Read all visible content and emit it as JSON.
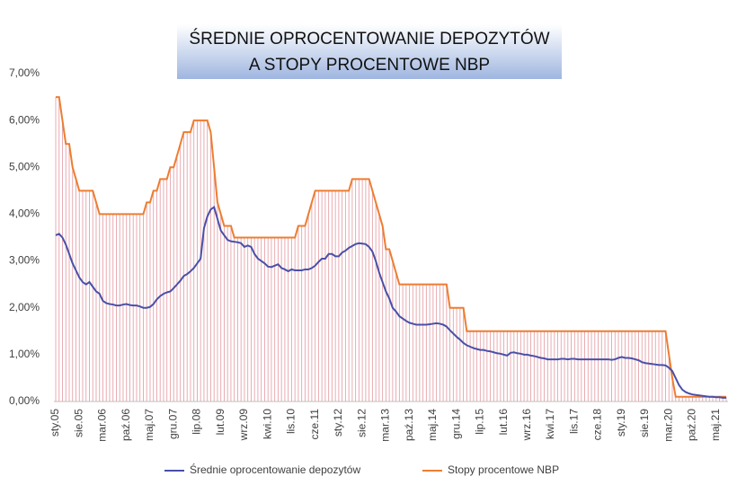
{
  "chart_data": {
    "type": "line",
    "title": [
      "ŚREDNIE OPROCENTOWANIE DEPOZYTÓW",
      "A STOPY PROCENTOWE NBP"
    ],
    "categories": [
      "sty.05",
      null,
      null,
      null,
      null,
      null,
      null,
      "sie.05",
      null,
      null,
      null,
      null,
      null,
      null,
      "mar.06",
      null,
      null,
      null,
      null,
      null,
      null,
      "paź.06",
      null,
      null,
      null,
      null,
      null,
      null,
      "maj.07",
      null,
      null,
      null,
      null,
      null,
      null,
      "gru.07",
      null,
      null,
      null,
      null,
      null,
      null,
      "lip.08",
      null,
      null,
      null,
      null,
      null,
      null,
      "lut.09",
      null,
      null,
      null,
      null,
      null,
      null,
      "wrz.09",
      null,
      null,
      null,
      null,
      null,
      null,
      "kwi.10",
      null,
      null,
      null,
      null,
      null,
      null,
      "lis.10",
      null,
      null,
      null,
      null,
      null,
      null,
      "cze.11",
      null,
      null,
      null,
      null,
      null,
      null,
      "sty.12",
      null,
      null,
      null,
      null,
      null,
      null,
      "sie.12",
      null,
      null,
      null,
      null,
      null,
      null,
      "mar.13",
      null,
      null,
      null,
      null,
      null,
      null,
      "paź.13",
      null,
      null,
      null,
      null,
      null,
      null,
      "maj.14",
      null,
      null,
      null,
      null,
      null,
      null,
      "gru.14",
      null,
      null,
      null,
      null,
      null,
      null,
      "lip.15",
      null,
      null,
      null,
      null,
      null,
      null,
      "lut.16",
      null,
      null,
      null,
      null,
      null,
      null,
      "wrz.16",
      null,
      null,
      null,
      null,
      null,
      null,
      "kwi.17",
      null,
      null,
      null,
      null,
      null,
      null,
      "lis.17",
      null,
      null,
      null,
      null,
      null,
      null,
      "cze.18",
      null,
      null,
      null,
      null,
      null,
      null,
      "sty.19",
      null,
      null,
      null,
      null,
      null,
      null,
      "sie.19",
      null,
      null,
      null,
      null,
      null,
      null,
      "mar.20",
      null,
      null,
      null,
      null,
      null,
      null,
      "paź.20",
      null,
      null,
      null,
      null,
      null,
      null,
      "maj.21",
      null,
      null,
      null
    ],
    "series": [
      {
        "name": "Średnie oprocentowanie depozytów",
        "color": "#4a4fa8",
        "values": [
          3.55,
          3.58,
          3.5,
          3.35,
          3.15,
          2.95,
          2.8,
          2.65,
          2.55,
          2.5,
          2.55,
          2.45,
          2.35,
          2.3,
          2.15,
          2.1,
          2.08,
          2.07,
          2.05,
          2.05,
          2.07,
          2.08,
          2.06,
          2.05,
          2.05,
          2.03,
          2.0,
          2.0,
          2.02,
          2.08,
          2.18,
          2.25,
          2.3,
          2.33,
          2.35,
          2.42,
          2.5,
          2.58,
          2.68,
          2.72,
          2.78,
          2.85,
          2.95,
          3.05,
          3.7,
          3.95,
          4.1,
          4.15,
          3.9,
          3.65,
          3.55,
          3.45,
          3.42,
          3.41,
          3.4,
          3.38,
          3.3,
          3.33,
          3.3,
          3.15,
          3.05,
          3.0,
          2.95,
          2.88,
          2.87,
          2.9,
          2.93,
          2.85,
          2.82,
          2.78,
          2.82,
          2.8,
          2.8,
          2.8,
          2.82,
          2.82,
          2.85,
          2.9,
          2.98,
          3.05,
          3.05,
          3.15,
          3.15,
          3.1,
          3.1,
          3.18,
          3.22,
          3.28,
          3.32,
          3.36,
          3.38,
          3.37,
          3.36,
          3.3,
          3.2,
          3.0,
          2.75,
          2.55,
          2.35,
          2.2,
          2.0,
          1.92,
          1.82,
          1.77,
          1.72,
          1.68,
          1.66,
          1.64,
          1.64,
          1.64,
          1.64,
          1.65,
          1.66,
          1.67,
          1.66,
          1.64,
          1.6,
          1.52,
          1.45,
          1.38,
          1.32,
          1.25,
          1.2,
          1.17,
          1.14,
          1.12,
          1.1,
          1.1,
          1.08,
          1.07,
          1.05,
          1.03,
          1.02,
          1.0,
          0.98,
          1.04,
          1.05,
          1.03,
          1.02,
          1.0,
          1.0,
          0.98,
          0.97,
          0.95,
          0.93,
          0.92,
          0.9,
          0.9,
          0.9,
          0.9,
          0.91,
          0.91,
          0.9,
          0.91,
          0.91,
          0.9,
          0.9,
          0.9,
          0.9,
          0.9,
          0.9,
          0.9,
          0.9,
          0.9,
          0.9,
          0.89,
          0.9,
          0.93,
          0.95,
          0.93,
          0.93,
          0.92,
          0.9,
          0.88,
          0.84,
          0.82,
          0.81,
          0.8,
          0.79,
          0.78,
          0.78,
          0.77,
          0.72,
          0.65,
          0.5,
          0.35,
          0.25,
          0.2,
          0.17,
          0.15,
          0.14,
          0.13,
          0.12,
          0.11,
          0.1,
          0.1,
          0.09,
          0.09,
          0.08,
          0.08
        ]
      },
      {
        "name": "Stopy procentowe NBP",
        "color": "#ed7d31",
        "values": [
          6.5,
          6.5,
          6.0,
          5.5,
          5.5,
          5.0,
          4.75,
          4.5,
          4.5,
          4.5,
          4.5,
          4.5,
          4.25,
          4.0,
          4.0,
          4.0,
          4.0,
          4.0,
          4.0,
          4.0,
          4.0,
          4.0,
          4.0,
          4.0,
          4.0,
          4.0,
          4.0,
          4.25,
          4.25,
          4.5,
          4.5,
          4.75,
          4.75,
          4.75,
          5.0,
          5.0,
          5.25,
          5.5,
          5.75,
          5.75,
          5.75,
          6.0,
          6.0,
          6.0,
          6.0,
          6.0,
          5.75,
          5.0,
          4.25,
          4.0,
          3.75,
          3.75,
          3.75,
          3.5,
          3.5,
          3.5,
          3.5,
          3.5,
          3.5,
          3.5,
          3.5,
          3.5,
          3.5,
          3.5,
          3.5,
          3.5,
          3.5,
          3.5,
          3.5,
          3.5,
          3.5,
          3.5,
          3.75,
          3.75,
          3.75,
          4.0,
          4.25,
          4.5,
          4.5,
          4.5,
          4.5,
          4.5,
          4.5,
          4.5,
          4.5,
          4.5,
          4.5,
          4.5,
          4.75,
          4.75,
          4.75,
          4.75,
          4.75,
          4.75,
          4.5,
          4.25,
          4.0,
          3.75,
          3.25,
          3.25,
          3.0,
          2.75,
          2.5,
          2.5,
          2.5,
          2.5,
          2.5,
          2.5,
          2.5,
          2.5,
          2.5,
          2.5,
          2.5,
          2.5,
          2.5,
          2.5,
          2.5,
          2.0,
          2.0,
          2.0,
          2.0,
          2.0,
          1.5,
          1.5,
          1.5,
          1.5,
          1.5,
          1.5,
          1.5,
          1.5,
          1.5,
          1.5,
          1.5,
          1.5,
          1.5,
          1.5,
          1.5,
          1.5,
          1.5,
          1.5,
          1.5,
          1.5,
          1.5,
          1.5,
          1.5,
          1.5,
          1.5,
          1.5,
          1.5,
          1.5,
          1.5,
          1.5,
          1.5,
          1.5,
          1.5,
          1.5,
          1.5,
          1.5,
          1.5,
          1.5,
          1.5,
          1.5,
          1.5,
          1.5,
          1.5,
          1.5,
          1.5,
          1.5,
          1.5,
          1.5,
          1.5,
          1.5,
          1.5,
          1.5,
          1.5,
          1.5,
          1.5,
          1.5,
          1.5,
          1.5,
          1.5,
          1.5,
          1.0,
          0.5,
          0.1,
          0.1,
          0.1,
          0.1,
          0.1,
          0.1,
          0.1,
          0.1,
          0.1,
          0.1,
          0.1,
          0.1,
          0.1,
          0.1,
          0.1,
          0.1
        ],
        "drop_lines": true,
        "drop_color": "#e6a3aa"
      }
    ],
    "ylim": [
      0,
      7
    ],
    "yticks": [
      {
        "value": 0,
        "label": "0,00%"
      },
      {
        "value": 1,
        "label": "1,00%"
      },
      {
        "value": 2,
        "label": "2,00%"
      },
      {
        "value": 3,
        "label": "3,00%"
      },
      {
        "value": 4,
        "label": "4,00%"
      },
      {
        "value": 5,
        "label": "5,00%"
      },
      {
        "value": 6,
        "label": "6,00%"
      },
      {
        "value": 7,
        "label": "7,00%"
      }
    ],
    "grid": false,
    "legend": "bottom"
  }
}
